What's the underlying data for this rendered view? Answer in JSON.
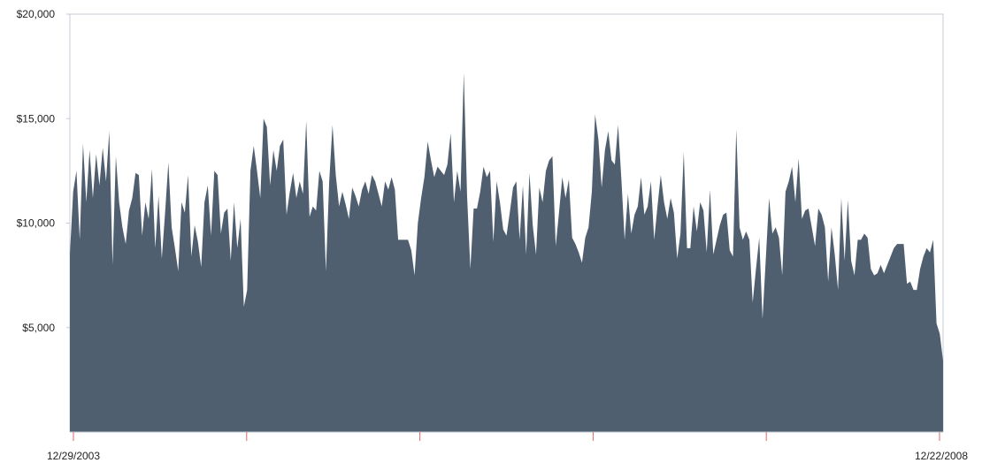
{
  "chart_data": {
    "type": "area",
    "title": "",
    "xlabel": "",
    "ylabel": "",
    "x_range": [
      "12/29/2003",
      "12/22/2008"
    ],
    "ylim": [
      0,
      20000
    ],
    "y_ticks": [
      {
        "value": 5000,
        "label": "$5,000"
      },
      {
        "value": 10000,
        "label": "$10,000"
      },
      {
        "value": 15000,
        "label": "$15,000"
      },
      {
        "value": 20000,
        "label": "$20,000"
      }
    ],
    "x_tick_labels": [
      {
        "pos": 0.0,
        "label": "12/29/2003"
      },
      {
        "pos": 1.0,
        "label": "12/22/2008"
      }
    ],
    "x_tick_marks": [
      0.0,
      0.2,
      0.4,
      0.6,
      0.8,
      1.0
    ],
    "grid": false,
    "fill_color": "#4f5f70",
    "frame_color": "#c5cbd6",
    "tick_mark_color": "#e06666",
    "values": [
      8500,
      11500,
      12500,
      9200,
      13800,
      11000,
      13500,
      11200,
      13300,
      11800,
      13600,
      12000,
      14400,
      8000,
      13200,
      11000,
      9800,
      9000,
      10600,
      11200,
      12400,
      12300,
      9400,
      11000,
      10200,
      12600,
      8800,
      11300,
      8300,
      10500,
      12900,
      9800,
      8800,
      7700,
      11000,
      10500,
      12300,
      8400,
      9900,
      9100,
      7900,
      11000,
      11800,
      9400,
      12500,
      12300,
      9500,
      10500,
      10700,
      8200,
      11000,
      8800,
      10200,
      6000,
      6800,
      12500,
      13700,
      12500,
      11200,
      15000,
      14600,
      11800,
      13500,
      12500,
      13700,
      14000,
      10400,
      11500,
      12400,
      11200,
      12000,
      11400,
      14900,
      10300,
      10800,
      10600,
      12500,
      12000,
      7700,
      12000,
      14700,
      12300,
      10800,
      11500,
      10900,
      10200,
      11700,
      11300,
      10800,
      11600,
      12000,
      11400,
      12300,
      12000,
      11400,
      10800,
      12000,
      11600,
      12200,
      11600,
      9200,
      9200,
      9200,
      9200,
      8700,
      7500,
      10000,
      11200,
      12200,
      13900,
      13000,
      12200,
      12700,
      12500,
      12300,
      12800,
      14300,
      11000,
      12500,
      11500,
      17200,
      11300,
      7800,
      10700,
      10700,
      11500,
      12700,
      12200,
      12500,
      9100,
      12000,
      11000,
      9700,
      9400,
      10500,
      11700,
      12000,
      9200,
      11800,
      8500,
      12400,
      9900,
      8500,
      11700,
      11000,
      12500,
      13000,
      13200,
      8900,
      10500,
      12200,
      11200,
      12100,
      9300,
      9000,
      8600,
      8100,
      9300,
      9800,
      11500,
      15200,
      14000,
      11700,
      13500,
      14400,
      13000,
      12800,
      14700,
      12100,
      9200,
      11400,
      9500,
      10400,
      10800,
      12200,
      10400,
      10800,
      12000,
      9200,
      10800,
      12300,
      11000,
      10200,
      11200,
      10500,
      8300,
      9500,
      13400,
      8800,
      8800,
      10800,
      9600,
      11000,
      10600,
      8600,
      11600,
      8500,
      9200,
      9900,
      10400,
      10500,
      8700,
      8400,
      14500,
      9800,
      9200,
      9600,
      9200,
      6200,
      7800,
      9300,
      5400,
      8300,
      11200,
      9500,
      9800,
      9300,
      7500,
      11500,
      12000,
      12700,
      11000,
      13100,
      10200,
      10600,
      10700,
      9800,
      8900,
      10700,
      10400,
      9800,
      7200,
      9800,
      8500,
      6800,
      11200,
      8200,
      11100,
      8200,
      7500,
      9200,
      9200,
      9500,
      9300,
      7800,
      7500,
      7600,
      8000,
      7600,
      8000,
      8400,
      8800,
      9000,
      9000,
      9000,
      7100,
      7200,
      6800,
      6800,
      7800,
      8400,
      8800,
      8600,
      9200,
      5200,
      4700,
      3400
    ]
  }
}
